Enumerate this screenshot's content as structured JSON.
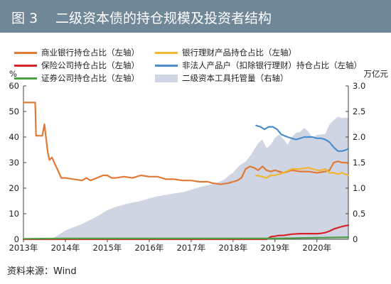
{
  "header": {
    "figure_no": "图 3",
    "title": "二级资本债的持仓规模及投资者结构"
  },
  "source": "资料来源：Wind",
  "colors": {
    "header_bg": "#6f8797",
    "bank_commercial": "#e07a38",
    "bank_wmp": "#f2b531",
    "insurance": "#d7232a",
    "nonlegal": "#4a8ecb",
    "securities": "#4e9e45",
    "custody_area": "#cfd5e3"
  },
  "chart_data": {
    "type": "line",
    "x_axis": {
      "min": 2013.0,
      "max": 2020.75,
      "ticks": [
        "2013年",
        "2014年",
        "2015年",
        "2016年",
        "2017年",
        "2018年",
        "2019年",
        "2020年"
      ]
    },
    "y_left": {
      "unit": "%",
      "min": 0,
      "max": 60,
      "ticks": [
        0,
        10,
        20,
        30,
        40,
        50,
        60
      ]
    },
    "y_right": {
      "unit": "万亿元",
      "min": 0,
      "max": 3,
      "ticks": [
        "0",
        "0.5",
        "1.0",
        "1.5",
        "2.0",
        "2.5",
        "3.0"
      ]
    },
    "legend": [
      "商业银行持仓占比（左轴）",
      "银行理财产品持仓占比（左轴）",
      "保险公司持仓占比（左轴）",
      "非法人产品户（扣除银行理财）持仓占比（左轴）",
      "证券公司持仓占比（左轴）",
      "二级资本工具托管量（右轴）"
    ],
    "area": {
      "name": "二级资本工具托管量（右轴）",
      "axis": "right",
      "x": [
        2013.0,
        2013.5,
        2013.7,
        2013.8,
        2013.9,
        2014.0,
        2014.2,
        2014.4,
        2014.6,
        2014.8,
        2015.0,
        2015.2,
        2015.4,
        2015.6,
        2015.8,
        2016.0,
        2016.2,
        2016.4,
        2016.6,
        2016.8,
        2017.0,
        2017.2,
        2017.4,
        2017.6,
        2017.8,
        2017.9,
        2018.0,
        2018.1,
        2018.2,
        2018.3,
        2018.4,
        2018.5,
        2018.6,
        2018.7,
        2018.8,
        2018.9,
        2019.0,
        2019.1,
        2019.2,
        2019.3,
        2019.4,
        2019.5,
        2019.6,
        2019.7,
        2019.8,
        2019.9,
        2020.0,
        2020.1,
        2020.2,
        2020.3,
        2020.4,
        2020.5,
        2020.6,
        2020.7,
        2020.75
      ],
      "values": [
        0,
        0,
        0.02,
        0.07,
        0.12,
        0.17,
        0.24,
        0.3,
        0.38,
        0.47,
        0.57,
        0.63,
        0.68,
        0.72,
        0.75,
        0.8,
        0.84,
        0.87,
        0.9,
        0.92,
        0.97,
        1.02,
        1.06,
        1.1,
        1.17,
        1.25,
        1.3,
        1.4,
        1.47,
        1.52,
        1.62,
        1.75,
        1.88,
        1.95,
        1.78,
        1.85,
        1.98,
        2.05,
        1.96,
        1.85,
        2.0,
        2.08,
        2.1,
        2.18,
        2.1,
        1.98,
        2.04,
        2.05,
        2.06,
        2.25,
        2.33,
        2.4,
        2.37,
        2.38,
        2.37
      ]
    },
    "series": [
      {
        "name": "商业银行持仓占比（左轴）",
        "color_key": "bank_commercial",
        "x": [
          2013.0,
          2013.28,
          2013.3,
          2013.45,
          2013.5,
          2013.58,
          2013.62,
          2013.68,
          2013.75,
          2013.82,
          2013.9,
          2014.0,
          2014.2,
          2014.4,
          2014.5,
          2014.6,
          2014.75,
          2014.9,
          2015.0,
          2015.1,
          2015.2,
          2015.4,
          2015.6,
          2015.8,
          2016.0,
          2016.2,
          2016.4,
          2016.6,
          2016.8,
          2017.0,
          2017.2,
          2017.4,
          2017.5,
          2017.7,
          2017.9,
          2018.0,
          2018.1,
          2018.2,
          2018.3,
          2018.4,
          2018.5,
          2018.6,
          2018.7,
          2018.8,
          2018.9,
          2019.0,
          2019.2,
          2019.4,
          2019.6,
          2019.8,
          2020.0,
          2020.2,
          2020.3,
          2020.4,
          2020.5,
          2020.6,
          2020.7,
          2020.75
        ],
        "values": [
          53.5,
          53.5,
          40.5,
          40.5,
          45,
          34,
          31,
          32,
          29.5,
          27,
          24,
          24,
          23.5,
          23,
          24,
          23,
          24,
          25,
          25,
          24,
          24,
          24.5,
          24,
          25,
          24.5,
          24.5,
          23.5,
          23.5,
          23,
          23,
          22.5,
          22.5,
          22,
          21.5,
          22,
          22.5,
          23,
          24,
          27.5,
          28.5,
          28,
          27,
          28.5,
          27,
          26.5,
          27,
          26,
          27,
          26.5,
          26.5,
          26,
          26.5,
          27,
          30,
          30.5,
          30,
          30,
          29.5
        ]
      },
      {
        "name": "银行理财产品持仓占比（左轴）",
        "color_key": "bank_wmp",
        "x": [
          2018.55,
          2018.7,
          2018.8,
          2018.9,
          2019.0,
          2019.2,
          2019.4,
          2019.6,
          2019.8,
          2020.0,
          2020.1,
          2020.2,
          2020.3,
          2020.4,
          2020.5,
          2020.6,
          2020.75
        ],
        "values": [
          25,
          24.5,
          24,
          25,
          25,
          26,
          27.5,
          27.5,
          28,
          27,
          27,
          27.5,
          26,
          26,
          25.5,
          26,
          25
        ]
      },
      {
        "name": "保险公司持仓占比（左轴）",
        "color_key": "insurance",
        "x": [
          2013.0,
          2018.8,
          2018.9,
          2019.0,
          2019.1,
          2019.2,
          2019.4,
          2019.6,
          2019.8,
          2020.0,
          2020.1,
          2020.2,
          2020.3,
          2020.4,
          2020.5,
          2020.6,
          2020.75
        ],
        "values": [
          0,
          0,
          1,
          1.2,
          1.5,
          1.5,
          2,
          2.2,
          2.2,
          2.2,
          2.3,
          2.6,
          3.2,
          4,
          4.5,
          5,
          5.5
        ]
      },
      {
        "name": "非法人产品户（扣除银行理财）持仓占比（左轴）",
        "color_key": "nonlegal",
        "x": [
          2018.55,
          2018.65,
          2018.75,
          2018.85,
          2018.95,
          2019.05,
          2019.15,
          2019.3,
          2019.5,
          2019.7,
          2019.9,
          2020.0,
          2020.1,
          2020.2,
          2020.3,
          2020.4,
          2020.5,
          2020.6,
          2020.7,
          2020.75
        ],
        "values": [
          44.5,
          44,
          43,
          44,
          44,
          43,
          41,
          40,
          39,
          40,
          40,
          39.5,
          39.5,
          39,
          38,
          36,
          34.5,
          34.5,
          35,
          35.5
        ]
      },
      {
        "name": "证券公司持仓占比（左轴）",
        "color_key": "securities",
        "x": [
          2013.0,
          2014.0,
          2015.0,
          2016.0,
          2017.0,
          2018.0,
          2019.0,
          2020.0,
          2020.75
        ],
        "values": [
          0.2,
          0.3,
          0.3,
          0.3,
          0.3,
          0.3,
          0.3,
          0.6,
          0.8
        ]
      }
    ]
  }
}
